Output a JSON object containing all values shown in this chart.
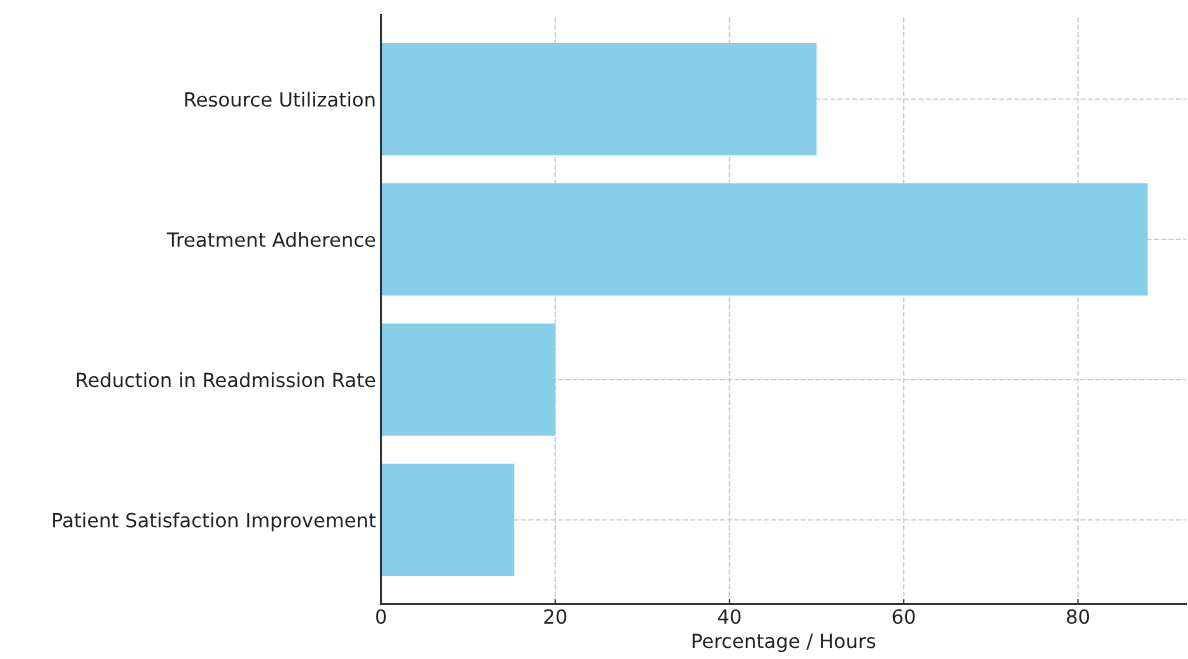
{
  "chart_data": {
    "type": "bar",
    "orientation": "horizontal",
    "xlabel": "Percentage / Hours",
    "categories": [
      "Resource Utilization",
      "Treatment Adherence",
      "Reduction in Readmission Rate",
      "Patient Satisfaction Improvement"
    ],
    "values": [
      50,
      88,
      20,
      15.3
    ],
    "color": "#87ceeb",
    "xlim": [
      0,
      92.4
    ],
    "xticks": [
      0,
      20,
      40,
      60,
      80
    ],
    "grid": true
  }
}
